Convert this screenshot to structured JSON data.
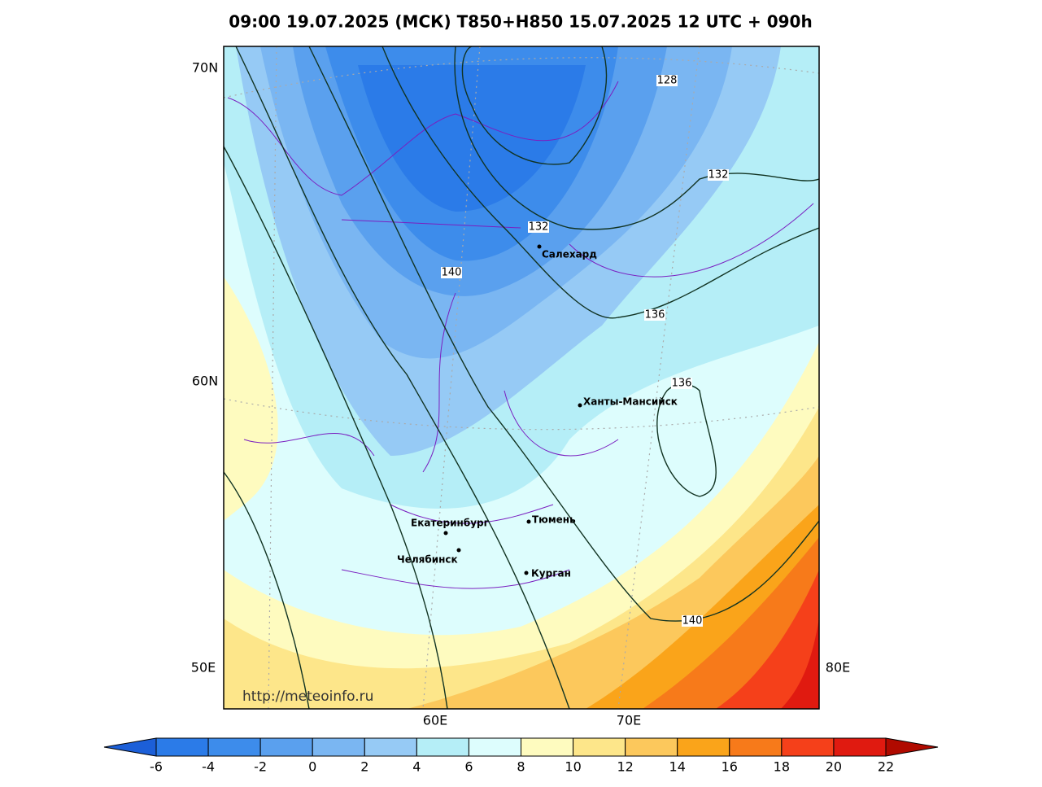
{
  "title": "09:00 19.07.2025 (МСК) T850+H850 15.07.2025 12 UTC + 090h",
  "axis_labels": {
    "lat_70": "70N",
    "lat_60": "60N",
    "lon_50": "50E",
    "lon_80": "80E",
    "lon_60": "60E",
    "lon_70": "70E"
  },
  "cities": [
    "Салехард",
    "Ханты-Мансийск",
    "Екатеринбург",
    "Тюмень",
    "Челябинск",
    "Курган"
  ],
  "contour_labels": [
    "128",
    "132",
    "132",
    "140",
    "136",
    "136",
    "140"
  ],
  "watermark": "http://meteoinfo.ru",
  "colorbar": {
    "ticks": [
      -6,
      -4,
      -2,
      0,
      2,
      4,
      6,
      8,
      10,
      12,
      14,
      16,
      18,
      20,
      22
    ],
    "colors": [
      "#1c5fd8",
      "#2b7be8",
      "#3d8ceb",
      "#5aa0ee",
      "#7ab6f2",
      "#96caf5",
      "#b5eef7",
      "#ddfdfd",
      "#fefbbf",
      "#fde68a",
      "#fcc85c",
      "#faa41a",
      "#f77a1a",
      "#f5401a",
      "#e01a10",
      "#b00a00"
    ]
  }
}
